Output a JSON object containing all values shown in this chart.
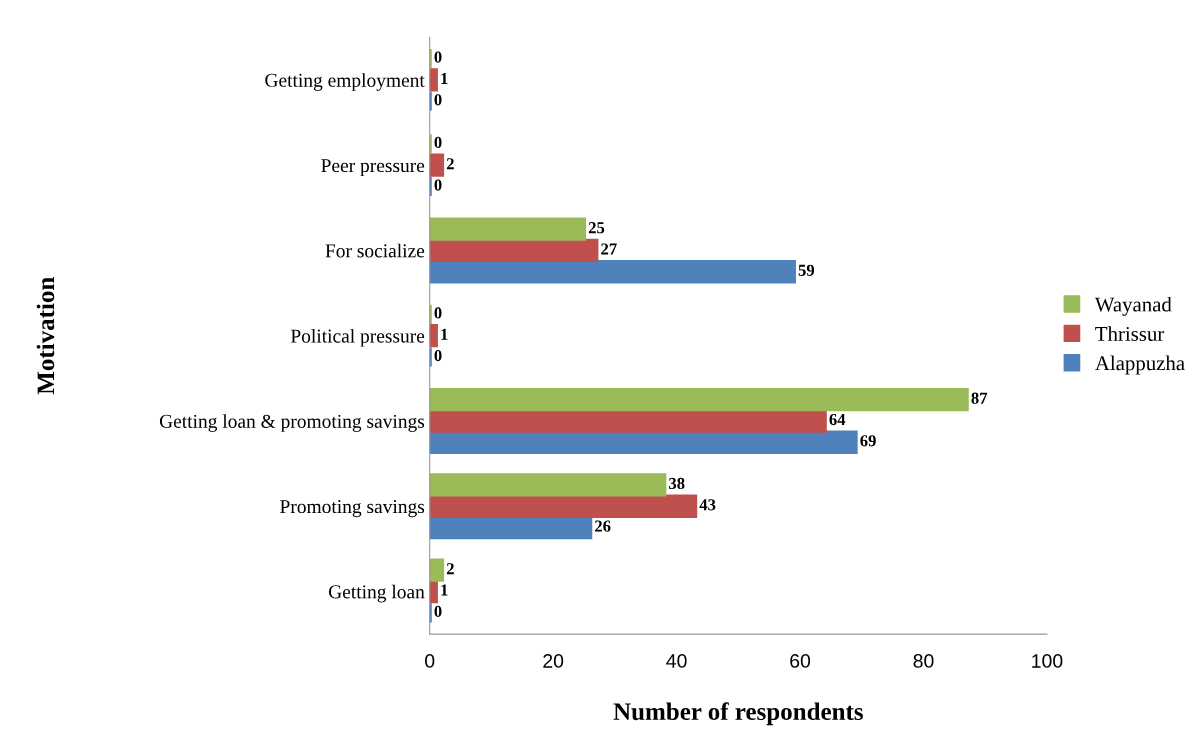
{
  "chart_data": {
    "type": "bar",
    "orientation": "horizontal",
    "xlabel": "Number of respondents",
    "ylabel": "Motivation",
    "categories": [
      "Getting employment",
      "Peer pressure",
      "For socialize",
      "Political pressure",
      "Getting loan & promoting savings",
      "Promoting savings",
      "Getting loan"
    ],
    "series": [
      {
        "name": "Alappuzha",
        "color": "#4f81bd",
        "values": [
          0,
          0,
          59,
          0,
          69,
          26,
          0
        ]
      },
      {
        "name": "Thrissur",
        "color": "#c0504d",
        "values": [
          1,
          2,
          27,
          1,
          64,
          43,
          1
        ]
      },
      {
        "name": "Wayanad",
        "color": "#9bbb59",
        "values": [
          0,
          0,
          25,
          0,
          87,
          38,
          2
        ]
      }
    ],
    "xlim": [
      0,
      100
    ],
    "xticks": [
      0,
      20,
      40,
      60,
      80,
      100
    ],
    "grid": false,
    "legend": "right",
    "data_labels": true
  }
}
